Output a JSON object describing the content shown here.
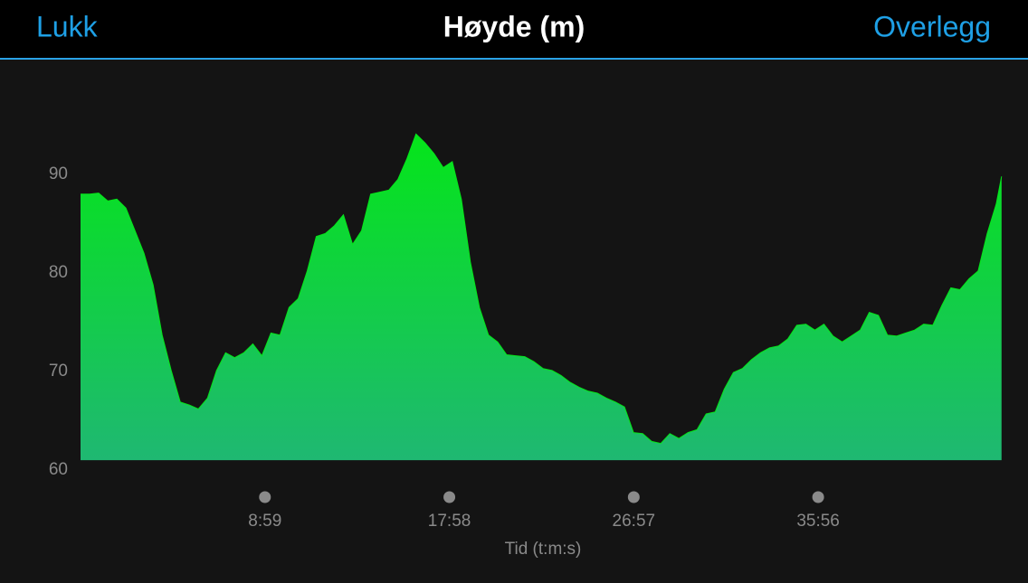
{
  "header": {
    "left": "Lukk",
    "title": "Høyde (m)",
    "right": "Overlegg"
  },
  "chart_data": {
    "type": "area",
    "x_label": "Tid (t:m:s)",
    "color": "#05e51a",
    "x": [
      0,
      26.5,
      53,
      79.5,
      106,
      132.5,
      159,
      185.5,
      212,
      238.5,
      265,
      291.5,
      318,
      344.5,
      371,
      397.5,
      424,
      450.5,
      477,
      503.5,
      530,
      556.5,
      583,
      609.5,
      636,
      662.5,
      689,
      715.5,
      742,
      768.5,
      795,
      821.5,
      848,
      874.5,
      901,
      927.5,
      954,
      980.5,
      1007,
      1033.5,
      1060,
      1086.5,
      1113,
      1139.5,
      1166,
      1192.5,
      1219,
      1245.5,
      1272,
      1298.5,
      1325,
      1351.5,
      1378,
      1404.5,
      1431,
      1457.5,
      1484,
      1510.5,
      1537,
      1563.5,
      1590,
      1616.5,
      1643,
      1669.5,
      1696,
      1722.5,
      1749,
      1775.5,
      1802,
      1828.5,
      1855,
      1881.5,
      1908,
      1934.5,
      1961,
      1987.5,
      2014,
      2040.5,
      2067,
      2093.5,
      2120,
      2146.5,
      2173,
      2199.5,
      2226,
      2252.5,
      2279,
      2305.5,
      2332,
      2358.5,
      2385,
      2411.5,
      2438,
      2464.5,
      2491,
      2517.5,
      2544,
      2570.5,
      2597,
      2623.5,
      2650,
      2676.5,
      2692
    ],
    "values": [
      88.0,
      88.0,
      88.1,
      87.3,
      87.5,
      86.6,
      84.3,
      82.0,
      78.8,
      73.7,
      70.1,
      66.9,
      66.6,
      66.2,
      67.3,
      70.1,
      71.9,
      71.4,
      71.9,
      72.8,
      71.6,
      73.9,
      73.7,
      76.5,
      77.4,
      80.2,
      83.7,
      84.0,
      84.8,
      85.9,
      82.9,
      84.3,
      88.0,
      88.2,
      88.4,
      89.5,
      91.6,
      94.1,
      93.2,
      92.1,
      90.7,
      91.3,
      87.5,
      81.1,
      76.5,
      73.7,
      73.0,
      71.7,
      71.6,
      71.5,
      71.0,
      70.3,
      70.1,
      69.6,
      68.9,
      68.4,
      68.0,
      67.8,
      67.3,
      66.9,
      66.4,
      63.8,
      63.7,
      62.9,
      62.7,
      63.7,
      63.2,
      63.8,
      64.1,
      65.7,
      65.9,
      68.2,
      69.9,
      70.3,
      71.2,
      71.9,
      72.4,
      72.6,
      73.3,
      74.7,
      74.8,
      74.2,
      74.8,
      73.6,
      73.0,
      73.6,
      74.2,
      76.0,
      75.7,
      73.7,
      73.6,
      73.9,
      74.2,
      74.8,
      74.7,
      76.7,
      78.5,
      78.3,
      79.4,
      80.2,
      84.0,
      87.0,
      89.8
    ],
    "xlim": [
      0,
      2690
    ],
    "xticks": [
      {
        "value": 539,
        "label": "8:59"
      },
      {
        "value": 1078,
        "label": "17:58"
      },
      {
        "value": 1617,
        "label": "26:57"
      },
      {
        "value": 2156,
        "label": "35:56"
      }
    ],
    "ylim": [
      61,
      97
    ],
    "yticks": [
      60,
      70,
      80,
      90
    ]
  }
}
